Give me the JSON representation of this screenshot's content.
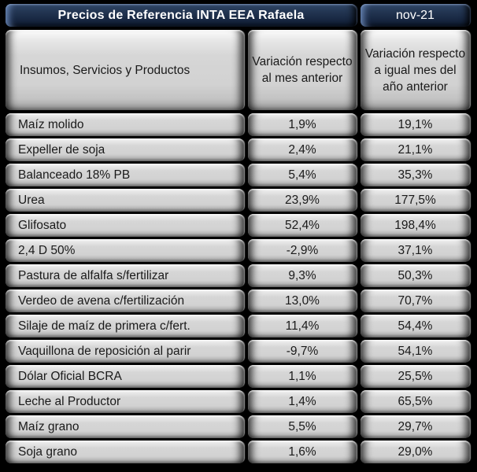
{
  "table": {
    "title": "Precios de Referencia INTA EEA Rafaela",
    "month": "nov-21",
    "columns": {
      "items": "Insumos, Servicios y Productos",
      "monthly": "Variación respecto al mes anterior",
      "yearly": "Variación respecto a igual mes del año anterior"
    }
  },
  "chart_data": {
    "type": "table",
    "title": "Precios de Referencia INTA EEA Rafaela",
    "period": "nov-21",
    "columns": [
      "Insumos, Servicios y Productos",
      "Variación respecto al mes anterior",
      "Variación respecto a igual mes del año anterior"
    ],
    "rows": [
      {
        "item": "Maíz molido",
        "monthly": "1,9%",
        "yearly": "19,1%"
      },
      {
        "item": "Expeller de soja",
        "monthly": "2,4%",
        "yearly": "21,1%"
      },
      {
        "item": "Balanceado 18% PB",
        "monthly": "5,4%",
        "yearly": "35,3%"
      },
      {
        "item": "Urea",
        "monthly": "23,9%",
        "yearly": "177,5%"
      },
      {
        "item": "Glifosato",
        "monthly": "52,4%",
        "yearly": "198,4%"
      },
      {
        "item": "2,4 D 50%",
        "monthly": "-2,9%",
        "yearly": "37,1%"
      },
      {
        "item": "Pastura de alfalfa s/fertilizar",
        "monthly": "9,3%",
        "yearly": "50,3%"
      },
      {
        "item": "Verdeo de avena c/fertilización",
        "monthly": "13,0%",
        "yearly": "70,7%"
      },
      {
        "item": "Silaje de maíz de primera c/fert.",
        "monthly": "11,4%",
        "yearly": "54,4%"
      },
      {
        "item": "Vaquillona de reposición al parir",
        "monthly": "-9,7%",
        "yearly": "54,1%"
      },
      {
        "item": "Dólar Oficial BCRA",
        "monthly": "1,1%",
        "yearly": "25,5%"
      },
      {
        "item": "Leche al Productor",
        "monthly": "1,4%",
        "yearly": "65,5%"
      },
      {
        "item": "Maíz grano",
        "monthly": "5,5%",
        "yearly": "29,7%"
      },
      {
        "item": "Soja grano",
        "monthly": "1,6%",
        "yearly": "29,0%"
      }
    ]
  },
  "colors": {
    "background": "#000000",
    "header_navy_top": "#34496b",
    "header_navy_bottom": "#0e1a2f",
    "cell_gray": "#d2d2d2",
    "text_dark": "#1a1a1a",
    "text_light": "#ffffff"
  }
}
